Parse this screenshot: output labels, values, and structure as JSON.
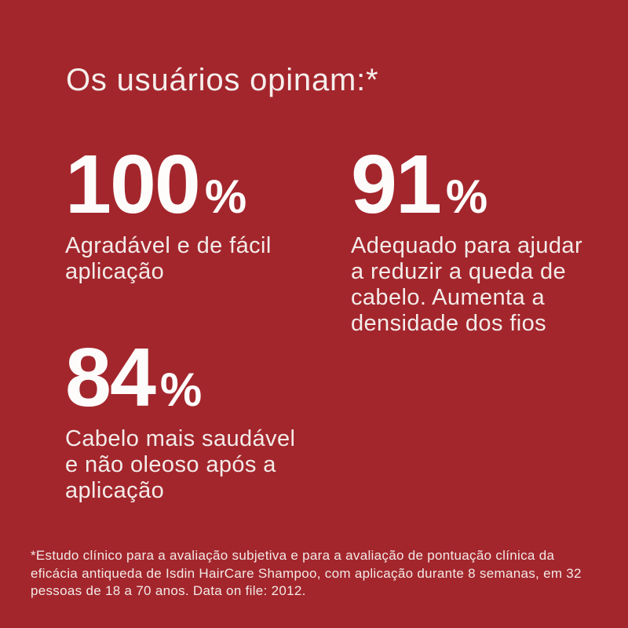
{
  "infographic": {
    "title": "Os usuários opinam:*",
    "stats": [
      {
        "value": "100",
        "unit": "%",
        "caption": "Agradável e de fácil aplicação",
        "caption_lines": [
          "Agradável e de fácil",
          "aplicação"
        ]
      },
      {
        "value": "91",
        "unit": "%",
        "caption": "Adequado para ajudar a reduzir a queda de cabelo. Aumenta a densidade dos fios",
        "caption_lines": [
          "Adequado para ajudar",
          "a reduzir a queda de",
          "cabelo. Aumenta a",
          "densidade dos fios"
        ]
      },
      {
        "value": "84",
        "unit": "%",
        "caption": "Cabelo mais saudável e não oleoso após a aplicação",
        "caption_lines": [
          "Cabelo mais saudável",
          "e não oleoso após a",
          "aplicação"
        ]
      }
    ],
    "footnote": "*Estudo clínico para a avaliação subjetiva e para a avaliação de pontuação clínica da eficácia antiqueda de Isdin HairCare Shampoo, com aplicação durante 8 semanas, em 32 pessoas de 18 a 70 anos. Data on file: 2012.",
    "footnote_lines": [
      "*Estudo clínico para a avaliação subjetiva e para a avaliação de pontuação clínica da",
      "eficácia antiqueda de Isdin HairCare Shampoo, com aplicação durante 8 semanas, em 32",
      "pessoas de 18 a 70 anos. Data on file: 2012."
    ],
    "colors": {
      "background": "#A3262C",
      "heading": "#F5EEEC",
      "number": "#FDFCFB",
      "caption": "#F3EBE9",
      "footnote": "#F2E9E7"
    }
  }
}
